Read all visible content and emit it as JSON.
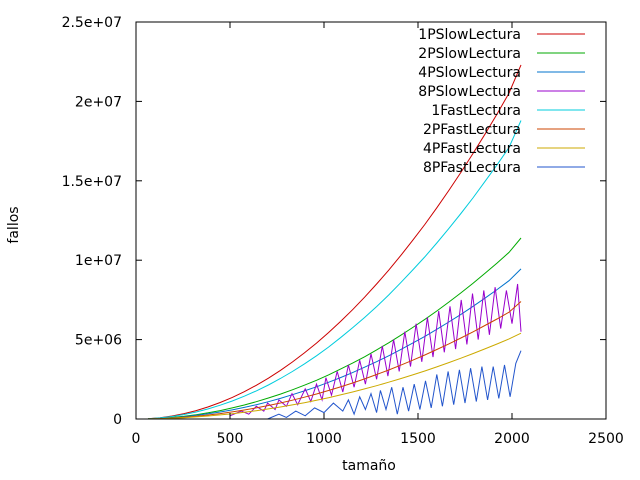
{
  "chart_data": {
    "type": "line",
    "title": "",
    "xlabel": "tamaño",
    "ylabel": "fallos",
    "xlim": [
      0,
      2500
    ],
    "ylim": [
      0,
      25000000
    ],
    "xticks": [
      0,
      500,
      1000,
      1500,
      2000,
      2500
    ],
    "xtick_labels": [
      "0",
      "500",
      "1000",
      "1500",
      "2000",
      "2500"
    ],
    "yticks": [
      0,
      5000000,
      10000000,
      15000000,
      20000000,
      25000000
    ],
    "ytick_labels": [
      "0",
      "5e+06",
      "1e+07",
      "1.5e+07",
      "2e+07",
      "2.5e+07"
    ],
    "grid": false,
    "legend_position": "top-right",
    "series": [
      {
        "name": "1PSlowLectura",
        "color": "#cc0000",
        "x": [
          64,
          128,
          192,
          256,
          320,
          384,
          448,
          512,
          576,
          640,
          704,
          768,
          832,
          896,
          960,
          1024,
          1088,
          1152,
          1216,
          1280,
          1344,
          1408,
          1472,
          1536,
          1600,
          1664,
          1728,
          1792,
          1856,
          1920,
          1984,
          2048
        ],
        "y": [
          20000,
          85000,
          190000,
          340000,
          530000,
          760000,
          1040000,
          1360000,
          1720000,
          2120000,
          2570000,
          3060000,
          3590000,
          4160000,
          4780000,
          5440000,
          6140000,
          6880000,
          7670000,
          8500000,
          9370000,
          10290000,
          11250000,
          12250000,
          13300000,
          14390000,
          15530000,
          16710000,
          17930000,
          19200000,
          20520000,
          22300000
        ]
      },
      {
        "name": "2PSlowLectura",
        "color": "#00aa00",
        "x": [
          64,
          128,
          192,
          256,
          320,
          384,
          448,
          512,
          576,
          640,
          704,
          768,
          832,
          896,
          960,
          1024,
          1088,
          1152,
          1216,
          1280,
          1344,
          1408,
          1472,
          1536,
          1600,
          1664,
          1728,
          1792,
          1856,
          1920,
          1984,
          2048
        ],
        "y": [
          10000,
          45000,
          100000,
          175000,
          270000,
          390000,
          530000,
          700000,
          880000,
          1090000,
          1320000,
          1570000,
          1840000,
          2130000,
          2440000,
          2780000,
          3140000,
          3520000,
          3920000,
          4350000,
          4800000,
          5270000,
          5760000,
          6270000,
          6800000,
          7360000,
          7940000,
          8540000,
          9170000,
          9820000,
          10490000,
          11400000
        ]
      },
      {
        "name": "4PSlowLectura",
        "color": "#0073cc",
        "x": [
          64,
          128,
          192,
          256,
          320,
          384,
          448,
          512,
          576,
          640,
          704,
          768,
          832,
          896,
          960,
          1024,
          1088,
          1152,
          1216,
          1280,
          1344,
          1408,
          1472,
          1536,
          1600,
          1664,
          1728,
          1792,
          1856,
          1920,
          1984,
          2048
        ],
        "y": [
          8000,
          37000,
          82000,
          145000,
          225000,
          325000,
          440000,
          575000,
          730000,
          900000,
          1090000,
          1300000,
          1530000,
          1770000,
          2030000,
          2310000,
          2610000,
          2920000,
          3260000,
          3610000,
          3980000,
          4370000,
          4780000,
          5200000,
          5650000,
          6110000,
          6590000,
          7090000,
          7610000,
          8150000,
          8710000,
          9450000
        ]
      },
      {
        "name": "8PSlowLectura",
        "color": "#9900cc",
        "x": [
          500,
          560,
          600,
          640,
          680,
          700,
          740,
          760,
          800,
          830,
          860,
          900,
          930,
          960,
          990,
          1010,
          1040,
          1070,
          1100,
          1130,
          1160,
          1190,
          1220,
          1250,
          1280,
          1310,
          1340,
          1370,
          1400,
          1430,
          1460,
          1490,
          1520,
          1550,
          1580,
          1610,
          1640,
          1670,
          1700,
          1730,
          1760,
          1790,
          1820,
          1850,
          1880,
          1910,
          1940,
          1970,
          2000,
          2030,
          2048
        ],
        "y": [
          200000,
          500000,
          300000,
          800000,
          500000,
          1000000,
          600000,
          1200000,
          800000,
          1600000,
          900000,
          1900000,
          1100000,
          2200000,
          1200000,
          2600000,
          1500000,
          3000000,
          1700000,
          3400000,
          2000000,
          3700000,
          2200000,
          4100000,
          2500000,
          4600000,
          2700000,
          5000000,
          3000000,
          5500000,
          3300000,
          6000000,
          3600000,
          6400000,
          3900000,
          6800000,
          4200000,
          7100000,
          4400000,
          7500000,
          4700000,
          7900000,
          5000000,
          8100000,
          5300000,
          8300000,
          5700000,
          8100000,
          6000000,
          8500000,
          5500000
        ]
      },
      {
        "name": "1FastLectura",
        "color": "#00ccdd",
        "x": [
          64,
          128,
          192,
          256,
          320,
          384,
          448,
          512,
          576,
          640,
          704,
          768,
          832,
          896,
          960,
          1024,
          1088,
          1152,
          1216,
          1280,
          1344,
          1408,
          1472,
          1536,
          1600,
          1664,
          1728,
          1792,
          1856,
          1920,
          1984,
          2048
        ],
        "y": [
          16000,
          70000,
          158000,
          283000,
          442000,
          636000,
          867000,
          1133000,
          1433000,
          1767000,
          2140000,
          2550000,
          2990000,
          3470000,
          3980000,
          4530000,
          5120000,
          5740000,
          6390000,
          7080000,
          7810000,
          8580000,
          9380000,
          10210000,
          11080000,
          11990000,
          12940000,
          13920000,
          14950000,
          16000000,
          17100000,
          18800000
        ]
      },
      {
        "name": "2PFastLectura",
        "color": "#cc4400",
        "x": [
          64,
          128,
          192,
          256,
          320,
          384,
          448,
          512,
          576,
          640,
          704,
          768,
          832,
          896,
          960,
          1024,
          1088,
          1152,
          1216,
          1280,
          1344,
          1408,
          1472,
          1536,
          1600,
          1664,
          1728,
          1792,
          1856,
          1920,
          1984,
          2048
        ],
        "y": [
          6000,
          28000,
          63000,
          112000,
          175000,
          252000,
          343000,
          448000,
          567000,
          700000,
          847000,
          1008000,
          1183000,
          1372000,
          1575000,
          1792000,
          2023000,
          2268000,
          2527000,
          2800000,
          3087000,
          3388000,
          3703000,
          4032000,
          4375000,
          4732000,
          5103000,
          5488000,
          5887000,
          6300000,
          6727000,
          7400000
        ]
      },
      {
        "name": "4PFastLectura",
        "color": "#ccaa00",
        "x": [
          64,
          128,
          192,
          256,
          320,
          384,
          448,
          512,
          576,
          640,
          704,
          768,
          832,
          896,
          960,
          1024,
          1088,
          1152,
          1216,
          1280,
          1344,
          1408,
          1472,
          1536,
          1600,
          1664,
          1728,
          1792,
          1856,
          1920,
          1984,
          2048
        ],
        "y": [
          5000,
          21000,
          47000,
          84000,
          131000,
          189000,
          257000,
          336000,
          425000,
          525000,
          635000,
          756000,
          887000,
          1029000,
          1181000,
          1344000,
          1517000,
          1701000,
          1895000,
          2100000,
          2315000,
          2541000,
          2777000,
          3024000,
          3281000,
          3549000,
          3827000,
          4116000,
          4415000,
          4725000,
          5045000,
          5400000
        ]
      },
      {
        "name": "8PFastLectura",
        "color": "#2255cc",
        "x": [
          700,
          760,
          800,
          850,
          900,
          950,
          1000,
          1050,
          1100,
          1130,
          1160,
          1190,
          1220,
          1250,
          1280,
          1300,
          1330,
          1360,
          1390,
          1420,
          1450,
          1480,
          1510,
          1540,
          1570,
          1600,
          1630,
          1660,
          1690,
          1720,
          1750,
          1780,
          1810,
          1840,
          1870,
          1900,
          1930,
          1960,
          1990,
          2020,
          2048
        ],
        "y": [
          0,
          300000,
          100000,
          500000,
          200000,
          700000,
          400000,
          1000000,
          500000,
          1200000,
          300000,
          1400000,
          600000,
          1600000,
          400000,
          1800000,
          600000,
          2000000,
          300000,
          2000000,
          500000,
          2200000,
          600000,
          2400000,
          700000,
          2800000,
          800000,
          3000000,
          900000,
          3100000,
          1000000,
          3200000,
          1100000,
          3300000,
          1200000,
          3300000,
          1300000,
          3400000,
          1400000,
          3500000,
          4300000
        ]
      }
    ]
  }
}
